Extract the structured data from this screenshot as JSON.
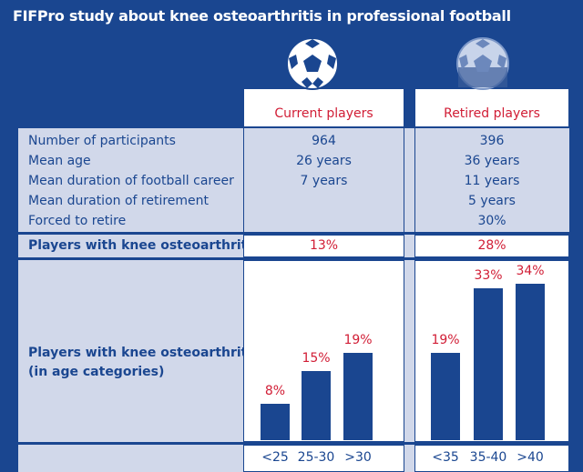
{
  "title": "FIFPro study about knee osteoarthritis in professional football",
  "colors": {
    "background": "#1a4690",
    "band": "#d1d8ea",
    "text": "#1a4690",
    "accent": "#d11d35"
  },
  "columns": {
    "current": {
      "label": "Current players",
      "icon": "soccer-ball-icon"
    },
    "retired": {
      "label": "Retired players",
      "icon": "soccer-ball-faded-icon"
    }
  },
  "rows": [
    {
      "label": "Number of participants",
      "current": "964",
      "retired": "396"
    },
    {
      "label": "Mean age",
      "current": "26 years",
      "retired": "36 years"
    },
    {
      "label": "Mean duration of football career",
      "current": "7 years",
      "retired": "11 years"
    },
    {
      "label": "Mean duration of retirement",
      "current": "",
      "retired": "5 years"
    },
    {
      "label": "Forced to retire",
      "current": "",
      "retired": "30%"
    }
  ],
  "oa_row": {
    "label": "Players with knee osteoarthritis",
    "current": "13%",
    "retired": "28%"
  },
  "age_row": {
    "label_line1": "Players with knee osteoarthritis",
    "label_line2": "(in age categories)"
  },
  "chart_data": [
    {
      "type": "bar",
      "categories": [
        "<25",
        "25-30",
        ">30"
      ],
      "values": [
        8,
        15,
        19
      ],
      "labels": [
        "8%",
        "15%",
        "19%"
      ]
    },
    {
      "type": "bar",
      "categories": [
        "<35",
        "35-40",
        ">40"
      ],
      "values": [
        19,
        33,
        34
      ],
      "labels": [
        "19%",
        "33%",
        "34%"
      ]
    }
  ]
}
